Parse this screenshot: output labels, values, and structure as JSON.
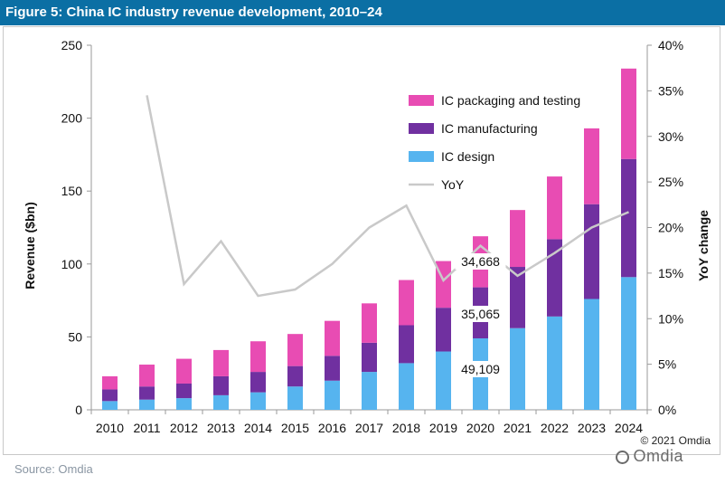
{
  "title": "Figure 5: China IC industry revenue development, 2010–24",
  "source": "Source: Omdia",
  "copyright": "© 2021 Omdia",
  "watermark": "Omdia",
  "chart_data": {
    "type": "stacked-bar+line",
    "categories": [
      "2010",
      "2011",
      "2012",
      "2013",
      "2014",
      "2015",
      "2016",
      "2017",
      "2018",
      "2019",
      "2020",
      "2021",
      "2022",
      "2023",
      "2024"
    ],
    "series": [
      {
        "name": "IC design",
        "color": "#56b4ef",
        "values": [
          6,
          7,
          8,
          10,
          12,
          16,
          20,
          26,
          32,
          40,
          49,
          56,
          64,
          76,
          91
        ]
      },
      {
        "name": "IC manufacturing",
        "color": "#7030a0",
        "values": [
          8,
          9,
          10,
          13,
          14,
          14,
          17,
          20,
          26,
          30,
          35,
          42,
          53,
          65,
          81
        ]
      },
      {
        "name": "IC packaging and testing",
        "color": "#e84cb3",
        "values": [
          9,
          15,
          17,
          18,
          21,
          22,
          24,
          27,
          31,
          32,
          35,
          39,
          43,
          52,
          62
        ]
      }
    ],
    "yoy": {
      "name": "YoY",
      "color": "#c9c9c9",
      "values": [
        null,
        34.5,
        13.8,
        18.5,
        12.5,
        13.2,
        16.0,
        20.0,
        22.4,
        14.2,
        18.0,
        14.7,
        17.2,
        20.0,
        21.7
      ]
    },
    "left_axis": {
      "label": "Revenue ($bn)",
      "min": 0,
      "max": 250,
      "ticks": [
        "0",
        "50",
        "100",
        "150",
        "200",
        "250"
      ]
    },
    "right_axis": {
      "label": "YoY change",
      "min": 0,
      "max": 40,
      "ticks": [
        "0%",
        "5%",
        "10%",
        "15%",
        "20%",
        "25%",
        "30%",
        "35%",
        "40%"
      ]
    },
    "annotations": [
      "34,668",
      "35,065",
      "49,109"
    ],
    "legend_position": "top-right",
    "grid": false
  }
}
